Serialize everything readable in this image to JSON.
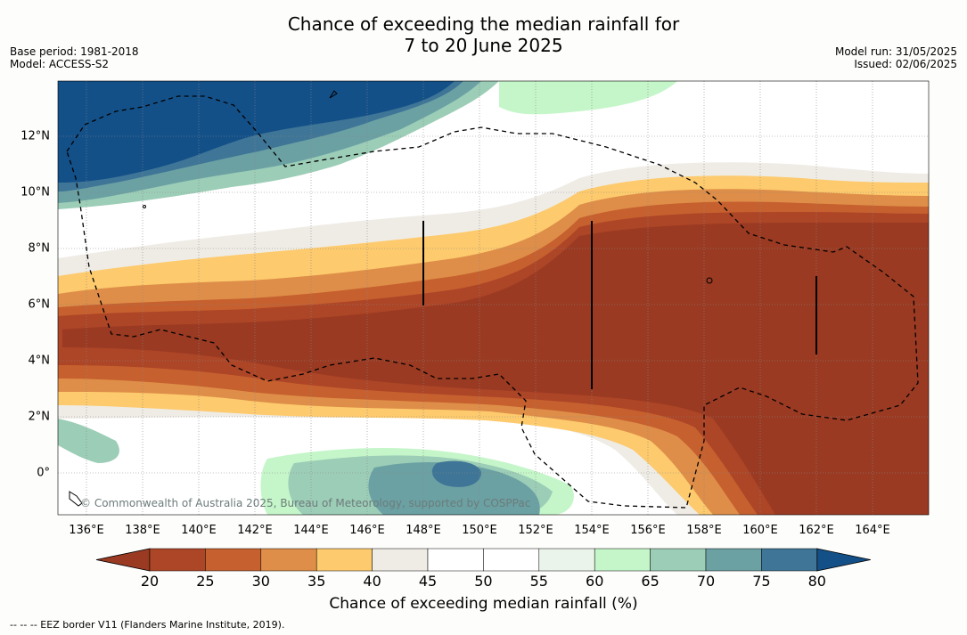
{
  "title_line1": "Chance of exceeding the median rainfall for",
  "title_line2": "7 to 20 June 2025",
  "meta_left": [
    "Base period: 1981-2018",
    "Model: ACCESS-S2"
  ],
  "meta_right": [
    "Model run: 31/05/2025",
    "Issued: 02/06/2025"
  ],
  "copyright": "© Commonwealth of Australia 2025, Bureau of Meteorology, supported by COSPPac",
  "footnote": "--  --  -- EEZ border V11 (Flanders Marine Institute, 2019).",
  "colorbar": {
    "label": "Chance of exceeding median rainfall (%)",
    "ticks": [
      "20",
      "25",
      "30",
      "35",
      "40",
      "45",
      "50",
      "55",
      "60",
      "65",
      "70",
      "75",
      "80"
    ],
    "colors": [
      "#9a3a22",
      "#ad4527",
      "#c6602f",
      "#de8e48",
      "#fdca6d",
      "#efece6",
      "#ffffff",
      "#ffffff",
      "#eaf4ea",
      "#c5f6c9",
      "#9ccdb7",
      "#6ba1a3",
      "#3f7596",
      "#145088"
    ]
  },
  "map": {
    "lon_ticks": [
      "136°E",
      "138°E",
      "140°E",
      "142°E",
      "144°E",
      "146°E",
      "148°E",
      "150°E",
      "152°E",
      "154°E",
      "156°E",
      "158°E",
      "160°E",
      "162°E",
      "164°E"
    ],
    "lat_ticks": [
      "12°N",
      "10°N",
      "8°N",
      "6°N",
      "4°N",
      "2°N",
      "0°"
    ]
  }
}
